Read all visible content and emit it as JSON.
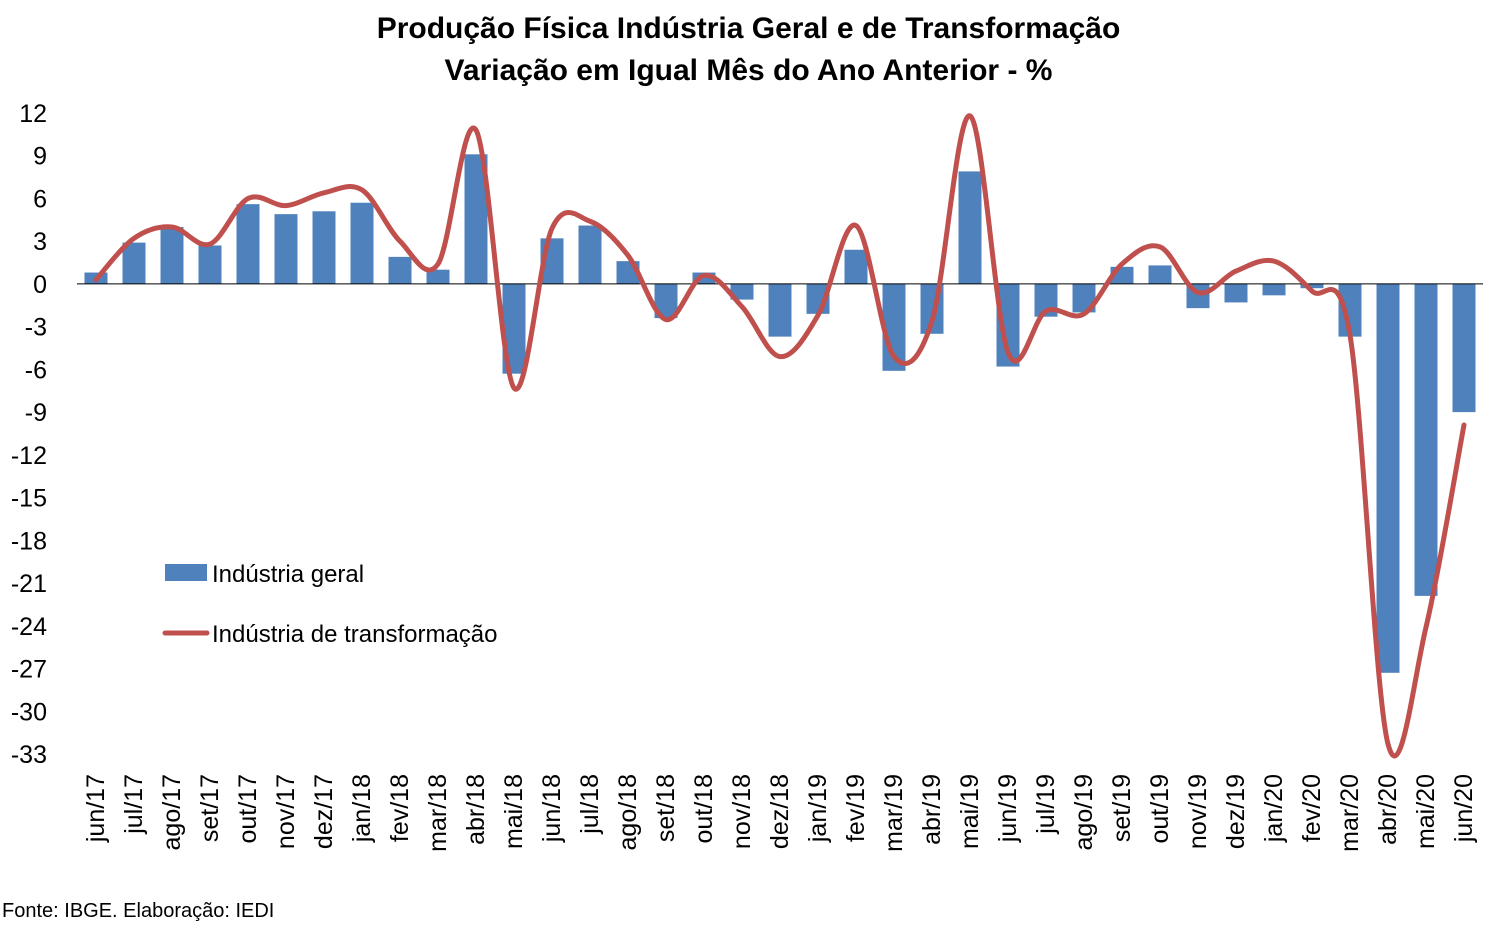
{
  "title_line1": "Produção Física Indústria Geral e de Transformação",
  "title_line2": "Variação em Igual Mês do Ano Anterior - %",
  "source": "Fonte: IBGE. Elaboração: IEDI",
  "chart_data": {
    "type": "bar+line",
    "title": "Produção Física Indústria Geral e de Transformação / Variação em Igual Mês do Ano Anterior - %",
    "categories": [
      "jun/17",
      "jul/17",
      "ago/17",
      "set/17",
      "out/17",
      "nov/17",
      "dez/17",
      "jan/18",
      "fev/18",
      "mar/18",
      "abr/18",
      "mai/18",
      "jun/18",
      "jul/18",
      "ago/18",
      "set/18",
      "out/18",
      "nov/18",
      "dez/18",
      "jan/19",
      "fev/19",
      "mar/19",
      "abr/19",
      "mai/19",
      "jun/19",
      "jul/19",
      "ago/19",
      "set/19",
      "out/19",
      "nov/19",
      "dez/19",
      "jan/20",
      "fev/20",
      "mar/20",
      "abr/20",
      "mai/20",
      "jun/20"
    ],
    "yticks": [
      12,
      9,
      6,
      3,
      0,
      -3,
      -6,
      -9,
      -12,
      -15,
      -18,
      -21,
      -24,
      -27,
      -30,
      -33
    ],
    "ylim": [
      -33,
      12
    ],
    "grid": false,
    "legend_position": "left-center",
    "series": [
      {
        "name": "Indústria geral",
        "kind": "bar",
        "color": "#4f81bd",
        "values": [
          0.8,
          2.9,
          4.0,
          2.7,
          5.6,
          4.9,
          5.1,
          5.7,
          1.9,
          1.0,
          9.1,
          -6.3,
          3.2,
          4.1,
          1.6,
          -2.4,
          0.8,
          -1.1,
          -3.7,
          -2.1,
          2.4,
          -6.1,
          -3.5,
          7.9,
          -5.8,
          -2.3,
          -2.0,
          1.2,
          1.3,
          -1.7,
          -1.3,
          -0.8,
          -0.3,
          -3.7,
          -27.3,
          -21.9,
          -9.0
        ]
      },
      {
        "name": "Indústria de transformação",
        "kind": "line",
        "color": "#c0504d",
        "values": [
          0.3,
          3.2,
          4.0,
          2.8,
          6.0,
          5.5,
          6.4,
          6.6,
          3.0,
          1.4,
          10.8,
          -7.3,
          3.9,
          4.4,
          2.0,
          -2.5,
          0.6,
          -1.6,
          -5.1,
          -2.2,
          4.1,
          -5.1,
          -2.6,
          11.8,
          -4.8,
          -1.9,
          -2.1,
          1.4,
          2.6,
          -0.6,
          0.9,
          1.6,
          -0.5,
          -3.6,
          -32.3,
          -24.1,
          -9.9
        ]
      }
    ]
  }
}
